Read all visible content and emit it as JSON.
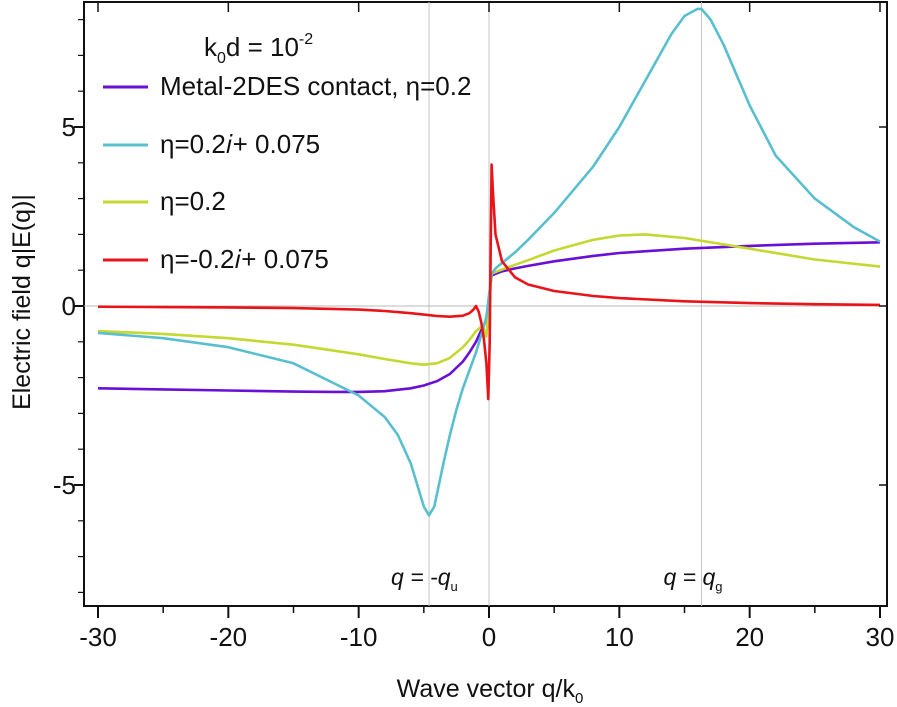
{
  "chart_data": {
    "type": "line",
    "title": "",
    "xlabel": "Wave vector q/k",
    "xlabel_sub": "0",
    "ylabel": "Electric field q|E(q)|",
    "xlim": [
      -30,
      30
    ],
    "ylim": [
      -8.2,
      8.5
    ],
    "xticks": [
      -30,
      -20,
      -10,
      0,
      10,
      20,
      30
    ],
    "yticks": [
      -5,
      0,
      5
    ],
    "ytick_labels": [
      "-5",
      "0",
      "5"
    ],
    "grid": false,
    "annotation": {
      "k_base": "k",
      "k_sub": "0",
      "d_eq": "d = 10",
      "exp": "-2"
    },
    "vertical_markers": [
      {
        "x": -4.6,
        "label_main": "q = -q",
        "label_sub": "u"
      },
      {
        "x": 16.3,
        "label_main": "q = q",
        "label_sub": "g"
      },
      {
        "x": 0,
        "label_main": "",
        "label_sub": ""
      }
    ],
    "series": [
      {
        "name": "Metal-2DES contact, η=0.2",
        "color": "#6a0fd6",
        "x": [
          -30,
          -25,
          -20,
          -15,
          -12,
          -10,
          -8,
          -6,
          -5,
          -4,
          -3,
          -2,
          -1.5,
          -1,
          -0.5,
          -0.2,
          0.2,
          0.5,
          1,
          2,
          3,
          5,
          8,
          10,
          15,
          20,
          25,
          30
        ],
        "y": [
          -2.3,
          -2.33,
          -2.36,
          -2.39,
          -2.4,
          -2.4,
          -2.38,
          -2.3,
          -2.22,
          -2.1,
          -1.9,
          -1.55,
          -1.3,
          -1.0,
          -0.6,
          -0.4,
          0.85,
          0.9,
          0.97,
          1.05,
          1.12,
          1.25,
          1.4,
          1.48,
          1.6,
          1.68,
          1.74,
          1.78
        ]
      },
      {
        "name": "η=0.2",
        "color": "#c4d831",
        "x": [
          -30,
          -25,
          -20,
          -15,
          -10,
          -8,
          -6,
          -5,
          -4,
          -3,
          -2,
          -1.5,
          -1,
          -0.5,
          -0.2,
          0.2,
          0.5,
          1,
          2,
          3,
          5,
          8,
          10,
          12,
          15,
          20,
          25,
          30
        ],
        "y": [
          -0.7,
          -0.78,
          -0.9,
          -1.08,
          -1.35,
          -1.48,
          -1.6,
          -1.64,
          -1.6,
          -1.45,
          -1.15,
          -0.95,
          -0.7,
          -0.55,
          -0.85,
          0.9,
          0.95,
          1.02,
          1.15,
          1.28,
          1.55,
          1.85,
          1.97,
          2.0,
          1.9,
          1.6,
          1.3,
          1.1
        ]
      },
      {
        "name": "η=0.2𝑖+ 0.075",
        "color": "#59bfcf",
        "x": [
          -30,
          -25,
          -20,
          -15,
          -10,
          -8,
          -7,
          -6,
          -5.5,
          -5,
          -4.6,
          -4.2,
          -3.5,
          -3,
          -2.5,
          -2,
          -1.5,
          -1,
          -0.5,
          -0.2,
          0.2,
          0.5,
          1,
          2,
          3,
          5,
          8,
          10,
          12,
          14,
          15,
          16,
          16.3,
          17,
          18,
          20,
          22,
          25,
          28,
          30
        ],
        "y": [
          -0.75,
          -0.9,
          -1.15,
          -1.6,
          -2.5,
          -3.1,
          -3.6,
          -4.4,
          -5.0,
          -5.6,
          -5.85,
          -5.6,
          -4.4,
          -3.6,
          -2.9,
          -2.3,
          -1.8,
          -1.3,
          -0.7,
          -0.3,
          0.9,
          1.05,
          1.2,
          1.5,
          1.85,
          2.6,
          3.9,
          5.0,
          6.3,
          7.6,
          8.1,
          8.3,
          8.3,
          8.0,
          7.3,
          5.6,
          4.2,
          3.0,
          2.2,
          1.8
        ]
      },
      {
        "name": "η=-0.2𝑖+ 0.075",
        "color": "#e8141a",
        "x": [
          -30,
          -25,
          -20,
          -15,
          -10,
          -8,
          -6,
          -5,
          -4,
          -3,
          -2,
          -1.5,
          -1.2,
          -1.0,
          -0.8,
          -0.6,
          -0.4,
          -0.2,
          -0.05,
          0.05,
          0.2,
          0.3,
          0.5,
          1,
          2,
          3,
          5,
          8,
          10,
          15,
          20,
          25,
          30
        ],
        "y": [
          -0.02,
          -0.03,
          -0.04,
          -0.06,
          -0.1,
          -0.14,
          -0.2,
          -0.24,
          -0.28,
          -0.3,
          -0.27,
          -0.2,
          -0.1,
          0.0,
          -0.15,
          -0.45,
          -0.9,
          -1.6,
          -2.6,
          -1.0,
          3.95,
          3.2,
          2.0,
          1.25,
          0.8,
          0.6,
          0.42,
          0.28,
          0.22,
          0.13,
          0.08,
          0.05,
          0.03
        ]
      }
    ],
    "legend_order": [
      0,
      2,
      1,
      3
    ],
    "legend_placement": "top-left"
  }
}
